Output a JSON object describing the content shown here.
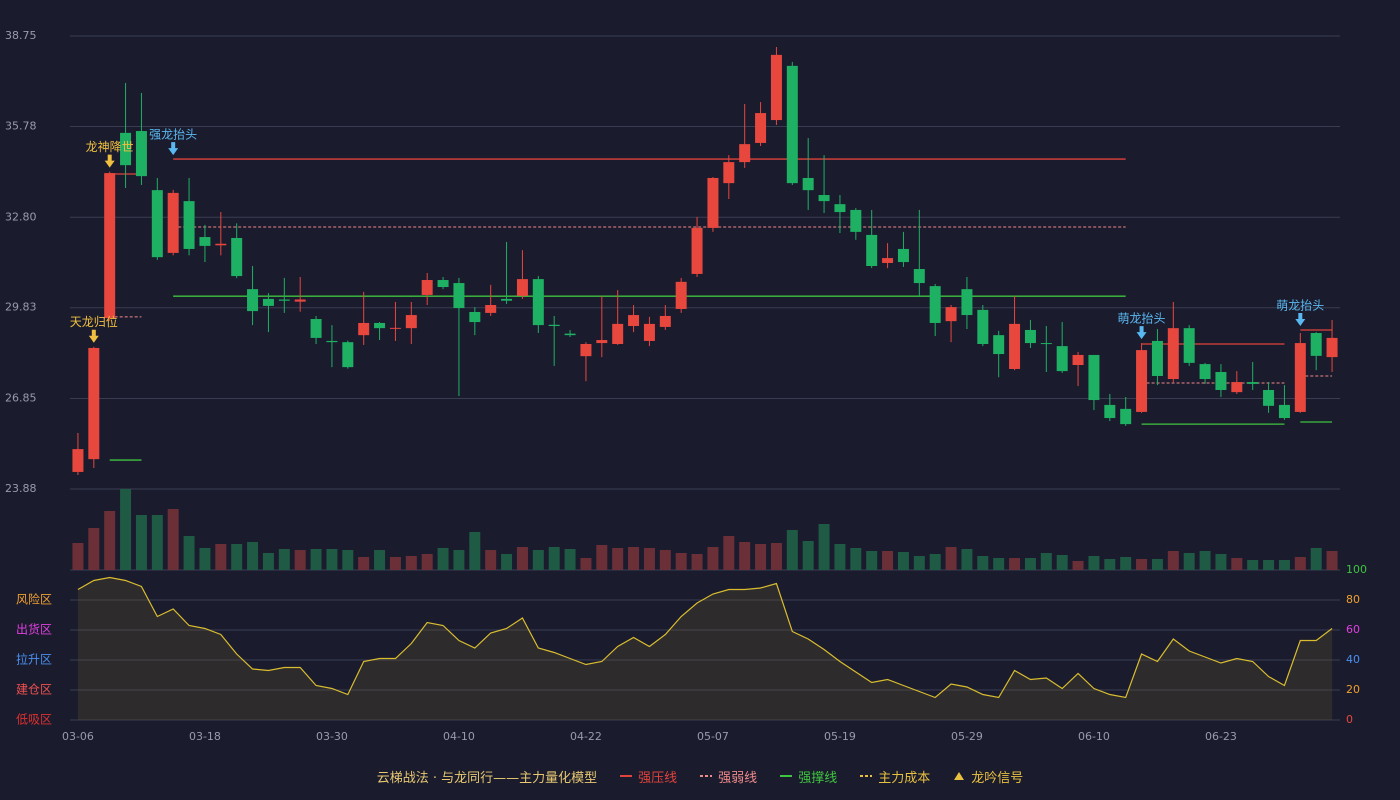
{
  "chart_data": {
    "type": "candlestick",
    "categories": [
      "03-06",
      null,
      null,
      null,
      null,
      null,
      null,
      null,
      "03-18",
      null,
      null,
      null,
      null,
      null,
      null,
      null,
      "03-30",
      null,
      null,
      null,
      null,
      null,
      null,
      null,
      "04-10",
      null,
      null,
      null,
      null,
      null,
      null,
      null,
      "04-22",
      null,
      null,
      null,
      null,
      null,
      null,
      null,
      "05-07",
      null,
      null,
      null,
      null,
      null,
      null,
      null,
      "05-19",
      null,
      null,
      null,
      null,
      null,
      null,
      null,
      "05-29",
      null,
      null,
      null,
      null,
      null,
      null,
      null,
      "06-10",
      null,
      null,
      null,
      null,
      null,
      null,
      null,
      "06-23",
      null,
      null,
      null,
      null,
      null,
      null,
      null
    ],
    "open": [
      24.44,
      24.86,
      29.49,
      35.57,
      35.63,
      33.69,
      31.63,
      33.33,
      32.15,
      31.88,
      32.12,
      30.44,
      30.12,
      30.1,
      30.03,
      29.46,
      28.74,
      28.7,
      28.93,
      29.33,
      29.14,
      29.16,
      30.25,
      30.74,
      30.64,
      29.69,
      29.66,
      30.12,
      30.22,
      30.77,
      29.27,
      28.98,
      28.24,
      28.67,
      28.64,
      29.23,
      28.74,
      29.2,
      29.79,
      30.94,
      32.45,
      33.92,
      34.61,
      35.24,
      35.99,
      37.77,
      34.09,
      33.53,
      33.23,
      33.04,
      32.22,
      31.3,
      31.76,
      31.1,
      30.54,
      29.39,
      30.44,
      29.76,
      28.93,
      27.82,
      29.1,
      28.67,
      28.57,
      27.95,
      28.28,
      26.64,
      26.51,
      26.41,
      28.74,
      27.49,
      29.16,
      27.98,
      27.72,
      27.06,
      27.39,
      27.13,
      26.64,
      26.41,
      29.0,
      28.21
    ],
    "high": [
      25.72,
      28.55,
      34.3,
      37.21,
      36.88,
      34.09,
      33.7,
      34.09,
      32.55,
      32.97,
      32.6,
      31.2,
      30.31,
      30.81,
      30.84,
      29.56,
      29.26,
      28.75,
      30.35,
      29.36,
      30.02,
      30.02,
      30.97,
      30.84,
      30.81,
      29.85,
      30.58,
      31.99,
      31.72,
      30.87,
      29.56,
      29.1,
      28.7,
      30.22,
      30.41,
      29.92,
      29.53,
      29.92,
      30.81,
      32.81,
      34.12,
      34.84,
      36.52,
      36.58,
      38.39,
      37.9,
      35.4,
      34.84,
      33.53,
      33.1,
      33.04,
      31.95,
      32.32,
      33.04,
      30.61,
      29.92,
      30.84,
      29.92,
      29.07,
      30.22,
      29.43,
      29.23,
      29.36,
      28.38,
      28.28,
      27.0,
      26.9,
      28.67,
      29.13,
      30.02,
      29.26,
      28.02,
      27.98,
      27.75,
      28.05,
      27.39,
      27.29,
      29.0,
      29.03,
      29.43
    ],
    "low": [
      24.34,
      24.57,
      29.4,
      33.76,
      33.86,
      31.4,
      31.55,
      31.55,
      31.33,
      31.55,
      30.8,
      29.26,
      29.03,
      29.66,
      29.7,
      28.64,
      27.88,
      27.83,
      28.61,
      28.77,
      28.74,
      28.64,
      29.92,
      30.44,
      26.93,
      28.93,
      29.56,
      29.95,
      30.12,
      29.0,
      27.92,
      28.87,
      27.42,
      28.21,
      28.61,
      29.03,
      28.57,
      29.1,
      29.66,
      30.84,
      32.32,
      33.4,
      34.42,
      35.14,
      35.83,
      33.86,
      33.04,
      32.94,
      32.28,
      32.06,
      31.13,
      31.13,
      31.17,
      30.18,
      28.9,
      28.7,
      29.13,
      28.57,
      27.55,
      27.78,
      28.51,
      27.72,
      27.69,
      27.26,
      26.47,
      26.11,
      25.95,
      26.38,
      27.29,
      27.39,
      27.92,
      27.33,
      26.9,
      27.0,
      27.13,
      26.38,
      26.15,
      26.38,
      27.78,
      27.72
    ],
    "close": [
      25.19,
      28.51,
      34.25,
      34.51,
      34.15,
      31.49,
      33.6,
      31.76,
      31.86,
      31.93,
      30.87,
      29.72,
      29.89,
      30.06,
      30.1,
      28.84,
      28.7,
      27.88,
      29.33,
      29.16,
      29.17,
      29.59,
      30.74,
      30.51,
      29.82,
      29.36,
      29.92,
      30.06,
      30.77,
      29.26,
      29.23,
      28.93,
      28.64,
      28.77,
      29.3,
      29.59,
      29.3,
      29.56,
      30.68,
      32.45,
      34.09,
      34.61,
      35.2,
      36.22,
      38.13,
      33.92,
      33.69,
      33.33,
      32.97,
      32.32,
      31.2,
      31.46,
      31.33,
      30.64,
      29.33,
      29.85,
      29.59,
      28.64,
      28.31,
      29.3,
      28.67,
      28.64,
      27.75,
      28.28,
      26.8,
      26.21,
      26.01,
      28.44,
      27.59,
      29.16,
      28.02,
      27.49,
      27.13,
      27.39,
      27.33,
      26.61,
      26.21,
      28.67,
      28.25,
      28.84
    ],
    "ylim": [
      23.88,
      38.75
    ],
    "yticks": [
      23.88,
      26.85,
      29.83,
      {
        "value": 32.8,
        "label": "32.80"
      },
      35.78,
      38.75
    ],
    "grid": true,
    "up_color": "#e8473e",
    "down_color": "#1fb163",
    "volume": {
      "values": [
        27,
        42,
        59,
        81,
        55,
        55,
        61,
        34,
        22,
        26,
        26,
        28,
        17,
        21,
        20,
        21,
        21,
        20,
        13,
        20,
        13,
        14,
        16,
        22,
        20,
        38,
        20,
        16,
        23,
        20,
        23,
        21,
        12,
        25,
        22,
        23,
        22,
        20,
        17,
        16,
        23,
        34,
        28,
        26,
        27,
        40,
        29,
        46,
        26,
        22,
        19,
        19,
        18,
        14,
        16,
        23,
        21,
        14,
        12,
        12,
        12,
        17,
        15,
        9,
        14,
        11,
        13,
        11,
        11,
        19,
        17,
        19,
        16,
        12,
        10,
        10,
        10,
        13,
        22,
        19
      ],
      "up_color": "#6b2f38",
      "down_color": "#1f5a45"
    },
    "levels": [
      {
        "name": "强压线",
        "color": "#e0433b",
        "dashed": false,
        "segments": [
          {
            "from": 2,
            "to": 4,
            "value": 34.22
          },
          {
            "from": 6,
            "to": 66,
            "value": 34.71
          },
          {
            "from": 67,
            "to": 76,
            "value": 28.64
          },
          {
            "from": 77,
            "to": 79,
            "value": 29.1
          }
        ]
      },
      {
        "name": "强弱线",
        "color": "#f08a8a",
        "dashed": true,
        "segments": [
          {
            "from": 2,
            "to": 4,
            "value": 29.53
          },
          {
            "from": 6,
            "to": 66,
            "value": 32.48
          },
          {
            "from": 67,
            "to": 76,
            "value": 27.36
          },
          {
            "from": 77,
            "to": 79,
            "value": 27.59
          }
        ]
      },
      {
        "name": "强撑线",
        "color": "#3ec43e",
        "dashed": false,
        "segments": [
          {
            "from": 2,
            "to": 4,
            "value": 24.83
          },
          {
            "from": 6,
            "to": 66,
            "value": 30.21
          },
          {
            "from": 67,
            "to": 76,
            "value": 26.01
          },
          {
            "from": 77,
            "to": 79,
            "value": 26.08
          }
        ]
      }
    ],
    "signals": [
      {
        "label": "天龙归位",
        "index": 1,
        "color": "#f0c040"
      },
      {
        "label": "龙神降世",
        "index": 2,
        "color": "#f0c040"
      },
      {
        "label": "强龙抬头",
        "index": 6,
        "color": "#5ab8f0"
      },
      {
        "label": "萌龙抬头",
        "index": 67,
        "color": "#5ab8f0"
      },
      {
        "label": "萌龙抬头",
        "index": 77,
        "color": "#5ab8f0"
      }
    ],
    "indicator": {
      "values": [
        87,
        93,
        95,
        93,
        89,
        69,
        74,
        63,
        61,
        57,
        44,
        34,
        33,
        35,
        35,
        23,
        21,
        17,
        39,
        41,
        41,
        51,
        65,
        63,
        53,
        48,
        58,
        61,
        68,
        48,
        45,
        41,
        37,
        39,
        49,
        55,
        49,
        57,
        69,
        78,
        84,
        87,
        87,
        88,
        91,
        59,
        54,
        47,
        39,
        32,
        25,
        27,
        23,
        19,
        15,
        24,
        22,
        17,
        15,
        33,
        27,
        28,
        21,
        31,
        21,
        17,
        15,
        44,
        39,
        54,
        46,
        42,
        38,
        41,
        39,
        29,
        23,
        53,
        53,
        61
      ],
      "color": "#d9bd2f",
      "ylim": [
        0,
        100
      ],
      "yticks": [
        0,
        20,
        40,
        60,
        80,
        100
      ],
      "ytick_colors": [
        "#e8473e",
        "#f0a030",
        "#4a90f0",
        "#e040e0",
        "#f0a030",
        "#3ec43e"
      ],
      "zones": [
        {
          "name": "风险区",
          "value": 80,
          "color": "#f0a030"
        },
        {
          "name": "出货区",
          "value": 60,
          "color": "#e040e0"
        },
        {
          "name": "拉升区",
          "value": 40,
          "color": "#4a90f0"
        },
        {
          "name": "建仓区",
          "value": 20,
          "color": "#f05050"
        },
        {
          "name": "低吸区",
          "value": 0,
          "color": "#e03030"
        }
      ]
    },
    "legend": {
      "title": "云梯战法 · 与龙同行——主力量化模型",
      "title_color": "#e8c872",
      "items": [
        {
          "name": "强压线",
          "color": "#e0433b",
          "style": "solid"
        },
        {
          "name": "强弱线",
          "color": "#f08a8a",
          "style": "dashed"
        },
        {
          "name": "强撑线",
          "color": "#3ec43e",
          "style": "solid"
        },
        {
          "name": "主力成本",
          "color": "#e8c040",
          "style": "dashed"
        },
        {
          "name": "龙吟信号",
          "color": "#e8c040",
          "style": "triangle"
        }
      ]
    }
  }
}
